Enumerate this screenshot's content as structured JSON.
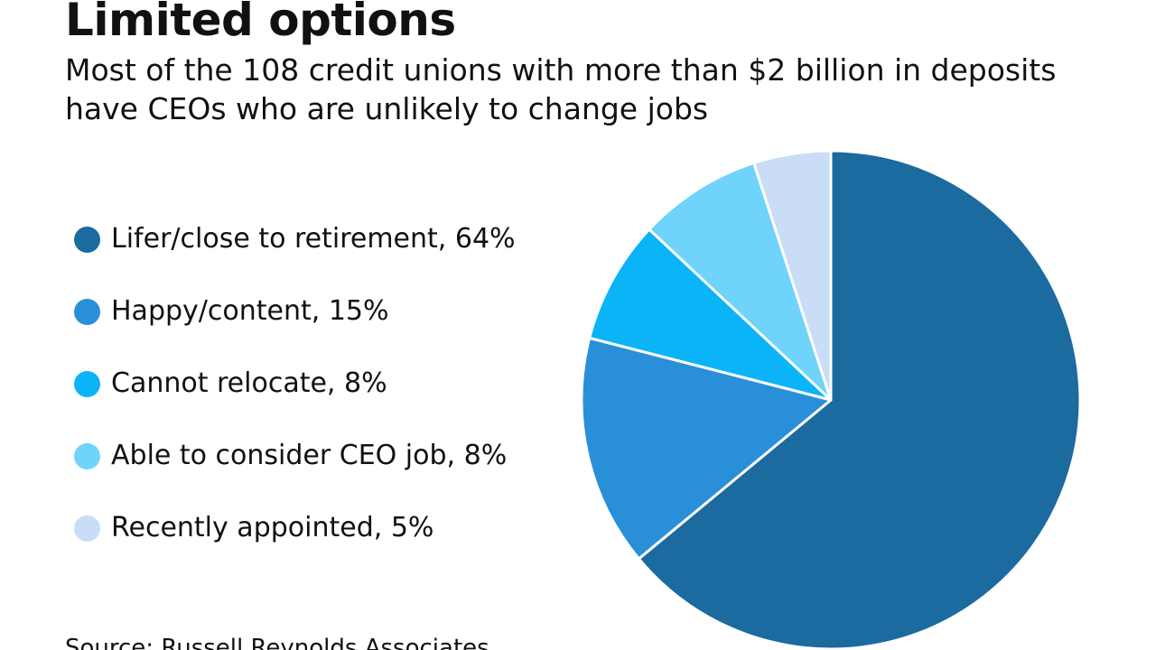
{
  "title": "Limited options",
  "subtitle": "Most of the 108 credit unions with more than $2 billion in deposits have CEOs who are unlikely to change jobs",
  "source": "Source: Russell Reynolds Associates",
  "chart_data": {
    "type": "pie",
    "title": "Limited options",
    "categories": [
      "Lifer/close to retirement",
      "Happy/content",
      "Cannot relocate",
      "Able to consider CEO job",
      "Recently appointed"
    ],
    "values": [
      64,
      15,
      8,
      8,
      5
    ],
    "unit": "%",
    "colors": [
      "#1b6aa0",
      "#2a8fd9",
      "#0bb4f6",
      "#6fd3fb",
      "#c9ddf6"
    ],
    "legend": [
      {
        "label": "Lifer/close to retirement, 64%",
        "color": "#1b6aa0"
      },
      {
        "label": "Happy/content, 15%",
        "color": "#2a8fd9"
      },
      {
        "label": "Cannot relocate, 8%",
        "color": "#0bb4f6"
      },
      {
        "label": "Able to consider CEO job, 8%",
        "color": "#6fd3fb"
      },
      {
        "label": "Recently appointed, 5%",
        "color": "#c9ddf6"
      }
    ],
    "legend_position": "left",
    "start_angle": "top",
    "direction": "clockwise"
  }
}
